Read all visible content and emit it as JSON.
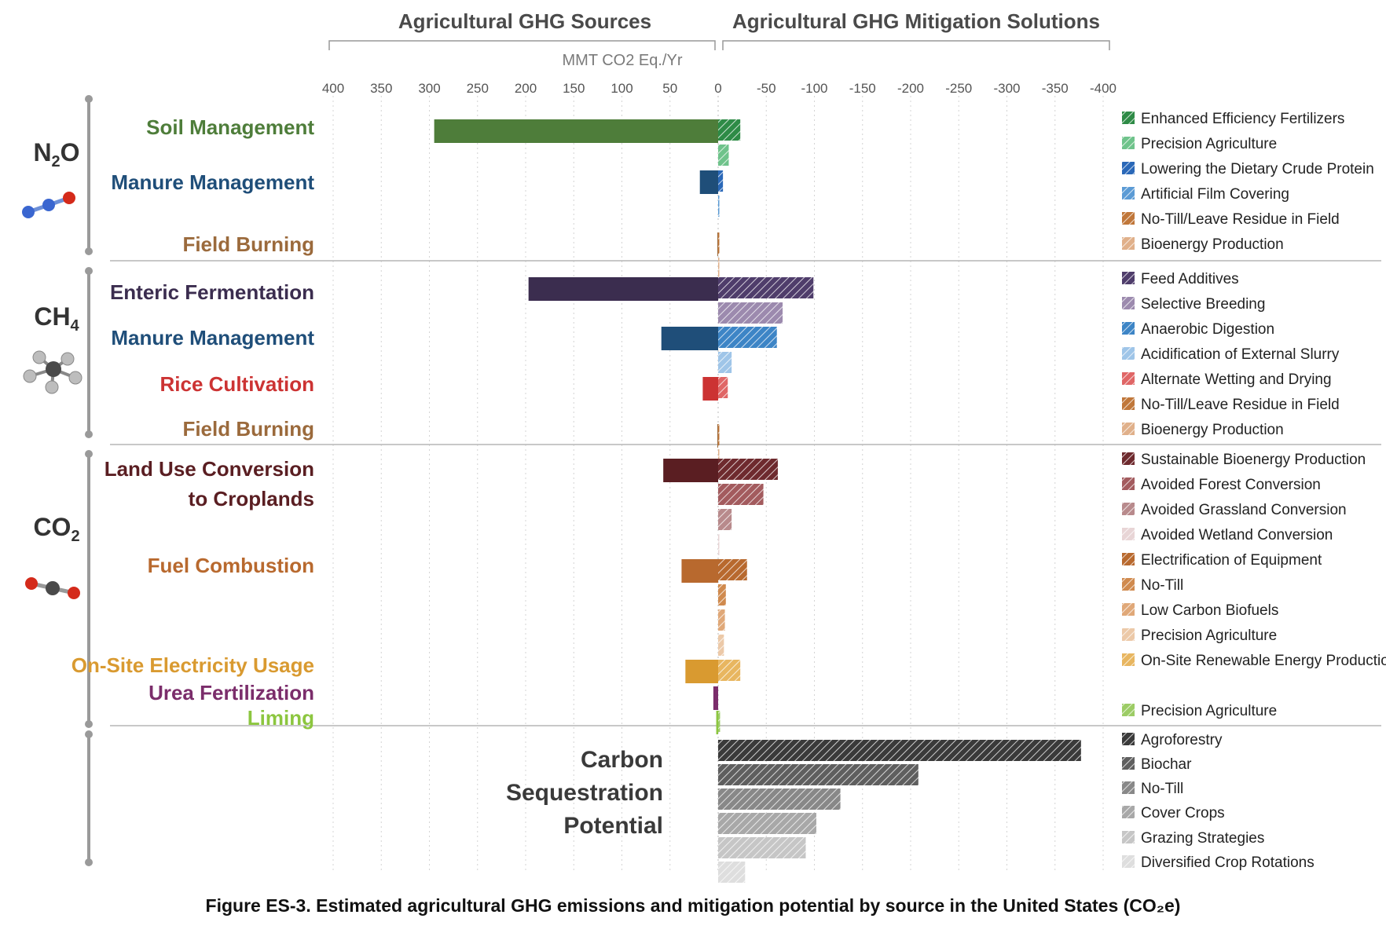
{
  "headers": {
    "sources": "Agricultural GHG Sources",
    "solutions": "Agricultural GHG Mitigation Solutions",
    "unit": "MMT CO2 Eq./Yr"
  },
  "gases": [
    {
      "label": "N2O",
      "icon": "n2o-molecule-icon"
    },
    {
      "label": "CH4",
      "icon": "ch4-molecule-icon"
    },
    {
      "label": "CO2",
      "icon": "co2-molecule-icon"
    }
  ],
  "sequestration_label": [
    "Carbon",
    "Sequestration",
    "Potential"
  ],
  "caption": "Figure ES-3. Estimated agricultural GHG emissions and mitigation potential by source in the United States (CO₂e)",
  "chart_data": {
    "type": "bar",
    "orientation": "horizontal",
    "xlabel": "MMT CO2 Eq./Yr",
    "xlim": [
      400,
      -400
    ],
    "x_ticks": [
      400,
      350,
      300,
      250,
      200,
      150,
      100,
      50,
      0,
      -50,
      -100,
      -150,
      -200,
      -250,
      -300,
      -350,
      -400
    ],
    "gridlines": "vertical dotted",
    "groups": [
      {
        "gas": "N2O",
        "rows": [
          {
            "category": "Soil Management",
            "color": "#4e7d3a",
            "source": 295,
            "solutions": [
              {
                "name": "Enhanced Efficiency Fertilizers",
                "value": -23,
                "color": "#2e8b46"
              },
              {
                "name": "Precision Agriculture",
                "value": -11,
                "color": "#6fc38b"
              }
            ]
          },
          {
            "category": "Manure Management",
            "color": "#1f4e79",
            "source": 19,
            "solutions": [
              {
                "name": "Lowering the Dietary Crude Protein",
                "value": -5,
                "color": "#2a68b8"
              },
              {
                "name": "Artificial Film Covering",
                "value": -1,
                "color": "#5b9bd5"
              }
            ]
          },
          {
            "category": "Field Burning",
            "color": "#9b6a3c",
            "source": 0.2,
            "solutions": [
              {
                "name": "No-Till/Leave Residue in Field",
                "value": -0.2,
                "color": "#c0773a"
              },
              {
                "name": "Bioenergy Production",
                "value": -0.1,
                "color": "#e0b08a"
              }
            ]
          }
        ]
      },
      {
        "gas": "CH4",
        "rows": [
          {
            "category": "Enteric Fermentation",
            "color": "#3b2d4f",
            "source": 197,
            "solutions": [
              {
                "name": "Feed Additives",
                "value": -99,
                "color": "#4f3d6b"
              },
              {
                "name": "Selective Breeding",
                "value": -67,
                "color": "#9c8aae"
              }
            ]
          },
          {
            "category": "Manure Management",
            "color": "#1f4e79",
            "source": 59,
            "solutions": [
              {
                "name": "Anaerobic Digestion",
                "value": -61,
                "color": "#3d85c6"
              },
              {
                "name": "Acidification of External Slurry",
                "value": -14,
                "color": "#9fc5e8"
              }
            ]
          },
          {
            "category": "Rice Cultivation",
            "color": "#cc3333",
            "source": 16,
            "solutions": [
              {
                "name": "Alternate Wetting and Drying",
                "value": -10,
                "color": "#e06666"
              }
            ]
          },
          {
            "category": "Field Burning",
            "color": "#9b6a3c",
            "source": 0.3,
            "solutions": [
              {
                "name": "No-Till/Leave Residue in Field",
                "value": -0.3,
                "color": "#c0773a"
              },
              {
                "name": "Bioenergy Production",
                "value": -0.1,
                "color": "#e0b08a"
              }
            ]
          }
        ]
      },
      {
        "gas": "CO2",
        "rows": [
          {
            "category": [
              "Land Use Conversion",
              "to Croplands"
            ],
            "color": "#5a1e22",
            "source": 57,
            "solutions": [
              {
                "name": "Sustainable Bioenergy Production",
                "value": -62,
                "color": "#6e2a2e"
              },
              {
                "name": "Avoided Forest Conversion",
                "value": -47,
                "color": "#a35b5e"
              },
              {
                "name": "Avoided Grassland Conversion",
                "value": -14,
                "color": "#b88a8c"
              },
              {
                "name": "Avoided Wetland Conversion",
                "value": -1,
                "color": "#e8d5d6"
              }
            ]
          },
          {
            "category": "Fuel Combustion",
            "color": "#b8692e",
            "source": 38,
            "solutions": [
              {
                "name": "Electrification of Equipment",
                "value": -30,
                "color": "#b8692e"
              },
              {
                "name": "No-Till",
                "value": -8,
                "color": "#d08a4e"
              },
              {
                "name": "Low Carbon Biofuels",
                "value": -7,
                "color": "#e0a878"
              },
              {
                "name": "Precision Agriculture",
                "value": -6,
                "color": "#ecc9a8"
              }
            ]
          },
          {
            "category": "On-Site Electricity Usage",
            "color": "#d99a30",
            "source": 34,
            "solutions": [
              {
                "name": "On-Site Renewable Energy Production",
                "value": -23,
                "color": "#e8b660"
              }
            ]
          },
          {
            "category": "Urea Fertilization",
            "color": "#7b2d6b",
            "source": 5,
            "solutions": []
          },
          {
            "category": "Liming",
            "color": "#8cc63f",
            "source": 2,
            "solutions": [
              {
                "name": "Precision Agriculture",
                "value": -2,
                "color": "#9ccc65"
              }
            ]
          }
        ]
      },
      {
        "gas": "Carbon Sequestration Potential",
        "rows": [
          {
            "category": "Carbon Sequestration Potential",
            "color": "#333333",
            "source": 0,
            "solutions": [
              {
                "name": "Agroforestry",
                "value": -377,
                "color": "#3a3a3a"
              },
              {
                "name": "Biochar",
                "value": -208,
                "color": "#5f5f5f"
              },
              {
                "name": "No-Till",
                "value": -127,
                "color": "#888888"
              },
              {
                "name": "Cover Crops",
                "value": -102,
                "color": "#a8a8a8"
              },
              {
                "name": "Grazing Strategies",
                "value": -91,
                "color": "#c6c6c6"
              },
              {
                "name": "Diversified Crop Rotations",
                "value": -28,
                "color": "#dedede"
              }
            ]
          }
        ]
      }
    ]
  }
}
